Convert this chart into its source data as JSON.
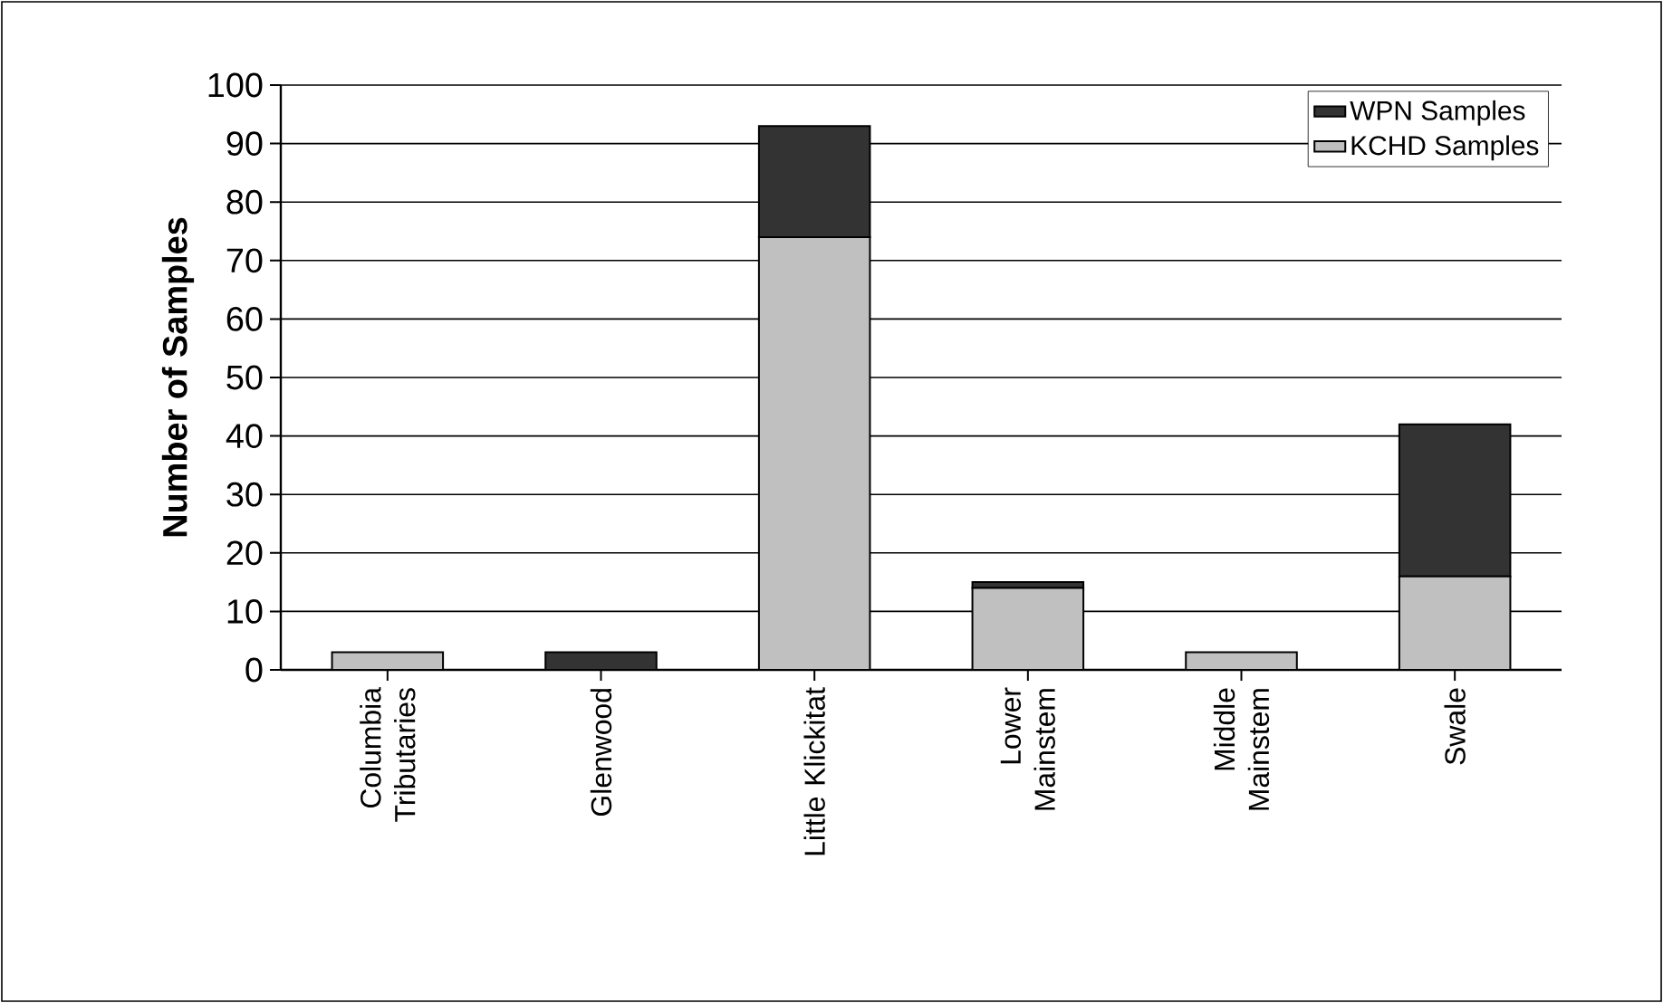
{
  "chart_data": {
    "type": "bar",
    "stacked": true,
    "ylabel": "Number of Samples",
    "categories": [
      "Columbia Tributaries",
      "Glenwood",
      "Little Klickitat",
      "Lower Mainstem",
      "Middle Mainstem",
      "Swale"
    ],
    "series": [
      {
        "name": "KCHD Samples",
        "color": "#c0c0c0",
        "values": [
          3,
          0,
          74,
          14,
          3,
          16
        ]
      },
      {
        "name": "WPN Samples",
        "color": "#333333",
        "values": [
          0,
          3,
          19,
          1,
          0,
          26
        ]
      }
    ],
    "ylim": [
      0,
      100
    ],
    "yticks": [
      0,
      10,
      20,
      30,
      40,
      50,
      60,
      70,
      80,
      90,
      100
    ],
    "grid": "y",
    "legend": "top right"
  }
}
